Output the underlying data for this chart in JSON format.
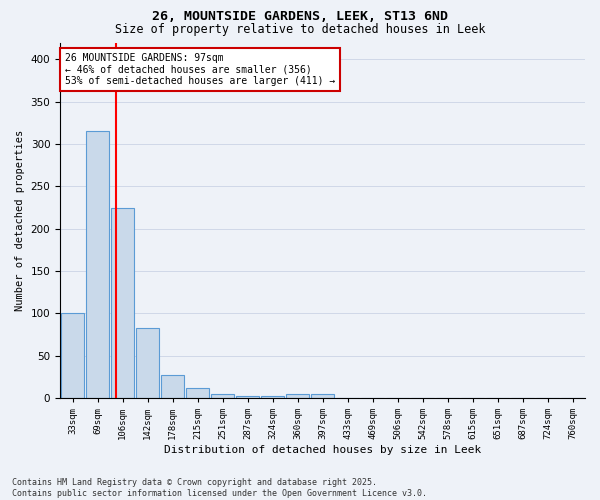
{
  "title_line1": "26, MOUNTSIDE GARDENS, LEEK, ST13 6ND",
  "title_line2": "Size of property relative to detached houses in Leek",
  "xlabel": "Distribution of detached houses by size in Leek",
  "ylabel": "Number of detached properties",
  "bar_labels": [
    "33sqm",
    "69sqm",
    "106sqm",
    "142sqm",
    "178sqm",
    "215sqm",
    "251sqm",
    "287sqm",
    "324sqm",
    "360sqm",
    "397sqm",
    "433sqm",
    "469sqm",
    "506sqm",
    "542sqm",
    "578sqm",
    "615sqm",
    "651sqm",
    "687sqm",
    "724sqm",
    "760sqm"
  ],
  "bar_values": [
    100,
    315,
    225,
    83,
    27,
    12,
    5,
    2,
    2,
    5,
    5,
    0,
    0,
    0,
    0,
    0,
    0,
    0,
    0,
    0,
    0
  ],
  "bar_color": "#c9d9ea",
  "bar_edge_color": "#5b9bd5",
  "grid_color": "#d0d8e8",
  "background_color": "#eef2f8",
  "red_line_x": 1.75,
  "annotation_text": "26 MOUNTSIDE GARDENS: 97sqm\n← 46% of detached houses are smaller (356)\n53% of semi-detached houses are larger (411) →",
  "annotation_box_color": "#ffffff",
  "annotation_box_edge": "#cc0000",
  "footnote": "Contains HM Land Registry data © Crown copyright and database right 2025.\nContains public sector information licensed under the Open Government Licence v3.0.",
  "ylim": [
    0,
    420
  ],
  "yticks": [
    0,
    50,
    100,
    150,
    200,
    250,
    300,
    350,
    400
  ]
}
